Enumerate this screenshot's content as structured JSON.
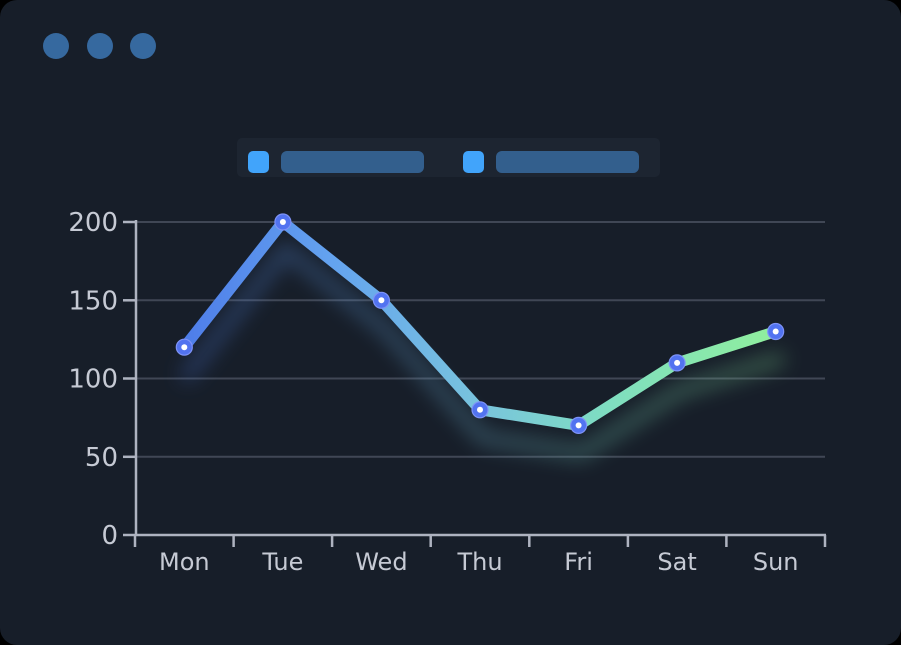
{
  "window": {
    "dot_count": 3,
    "dot_color": "#36699f"
  },
  "legend": {
    "items": [
      {
        "swatch_color": "#41a4fb",
        "bar_color": "#335f8d"
      },
      {
        "swatch_color": "#41a4fb",
        "bar_color": "#335f8d"
      }
    ],
    "panel_color": "#1d2531"
  },
  "chart_data": {
    "type": "line",
    "categories": [
      "Mon",
      "Tue",
      "Wed",
      "Thu",
      "Fri",
      "Sat",
      "Sun"
    ],
    "values": [
      120,
      200,
      150,
      80,
      70,
      110,
      130
    ],
    "title": "",
    "xlabel": "",
    "ylabel": "",
    "ylim": [
      0,
      200
    ],
    "yticks": [
      0,
      50,
      100,
      150,
      200
    ],
    "grid": true,
    "legend_position": "top",
    "styles": {
      "line_gradient": [
        {
          "offset": 0,
          "color": "#4e7de9"
        },
        {
          "offset": 0.25,
          "color": "#64a3ef"
        },
        {
          "offset": 0.5,
          "color": "#79c4dd"
        },
        {
          "offset": 0.72,
          "color": "#7fdec0"
        },
        {
          "offset": 1,
          "color": "#90ef9d"
        }
      ],
      "marker_fill": "#5273f0",
      "marker_ring": "#7e93f7",
      "marker_center": "#ffffff",
      "axis_color": "#aeb3c0",
      "grid_color": "rgba(173,180,200,0.28)",
      "tick_label_color": "#c6cad4",
      "background": "#171e29"
    }
  }
}
